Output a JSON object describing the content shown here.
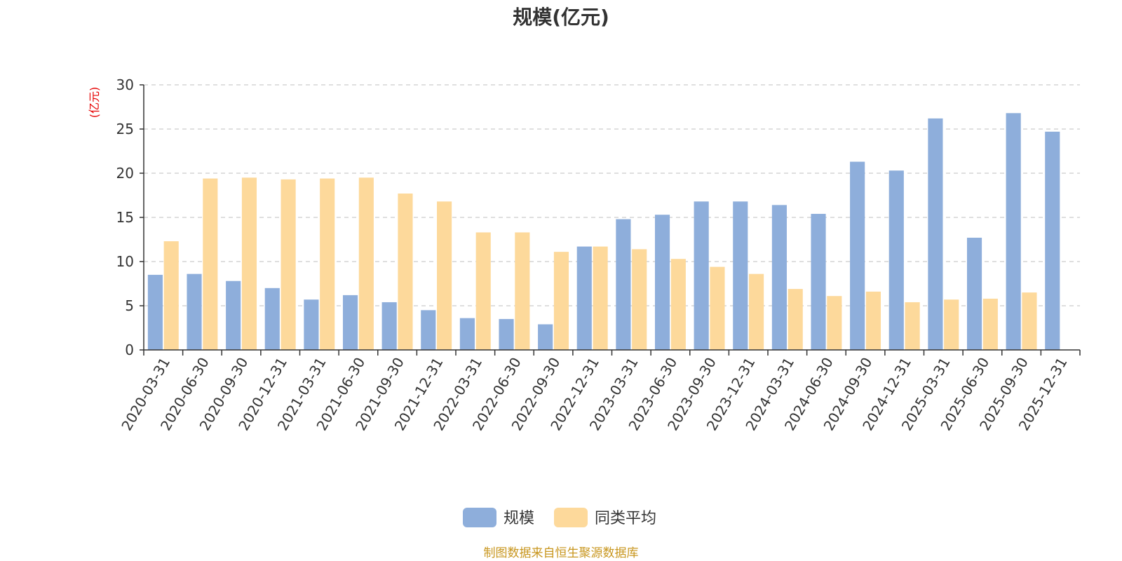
{
  "chart_data": {
    "type": "bar",
    "title": "规模(亿元)",
    "ylabel": "(亿元)",
    "xlabel": "",
    "ylim": [
      0,
      30
    ],
    "yticks": [
      0,
      5,
      10,
      15,
      20,
      25,
      30
    ],
    "grid": true,
    "legend_position": "bottom-center",
    "categories": [
      "2020-03-31",
      "2020-06-30",
      "2020-09-30",
      "2020-12-31",
      "2021-03-31",
      "2021-06-30",
      "2021-09-30",
      "2021-12-31",
      "2022-03-31",
      "2022-06-30",
      "2022-09-30",
      "2022-12-31",
      "2023-03-31",
      "2023-06-30",
      "2023-09-30",
      "2023-12-31",
      "2024-03-31",
      "2024-06-30",
      "2024-09-30",
      "2024-12-31",
      "2025-03-31",
      "2025-06-30",
      "2025-09-30",
      "2025-12-31"
    ],
    "series": [
      {
        "name": "规模",
        "color": "#8eaedb",
        "values": [
          8.5,
          8.6,
          7.8,
          7.0,
          5.7,
          6.2,
          5.4,
          4.5,
          3.6,
          3.5,
          2.9,
          11.7,
          14.8,
          15.3,
          16.8,
          16.8,
          16.4,
          15.4,
          21.3,
          20.3,
          26.2,
          12.7,
          26.8,
          24.7
        ]
      },
      {
        "name": "同类平均",
        "color": "#fdd99b",
        "values": [
          12.3,
          19.4,
          19.5,
          19.3,
          19.4,
          19.5,
          17.7,
          16.8,
          13.3,
          13.3,
          11.1,
          11.7,
          11.4,
          10.3,
          9.4,
          8.6,
          6.9,
          6.1,
          6.6,
          5.4,
          5.7,
          5.8,
          6.5,
          null
        ]
      }
    ]
  },
  "legend": {
    "items": [
      {
        "label": "规模",
        "color": "#8eaedb"
      },
      {
        "label": "同类平均",
        "color": "#fdd99b"
      }
    ]
  },
  "source_note": "制图数据来自恒生聚源数据库",
  "colors": {
    "axis": "#333333",
    "grid": "#cccccc",
    "unit": "#e60000",
    "source": "#c8961e"
  }
}
